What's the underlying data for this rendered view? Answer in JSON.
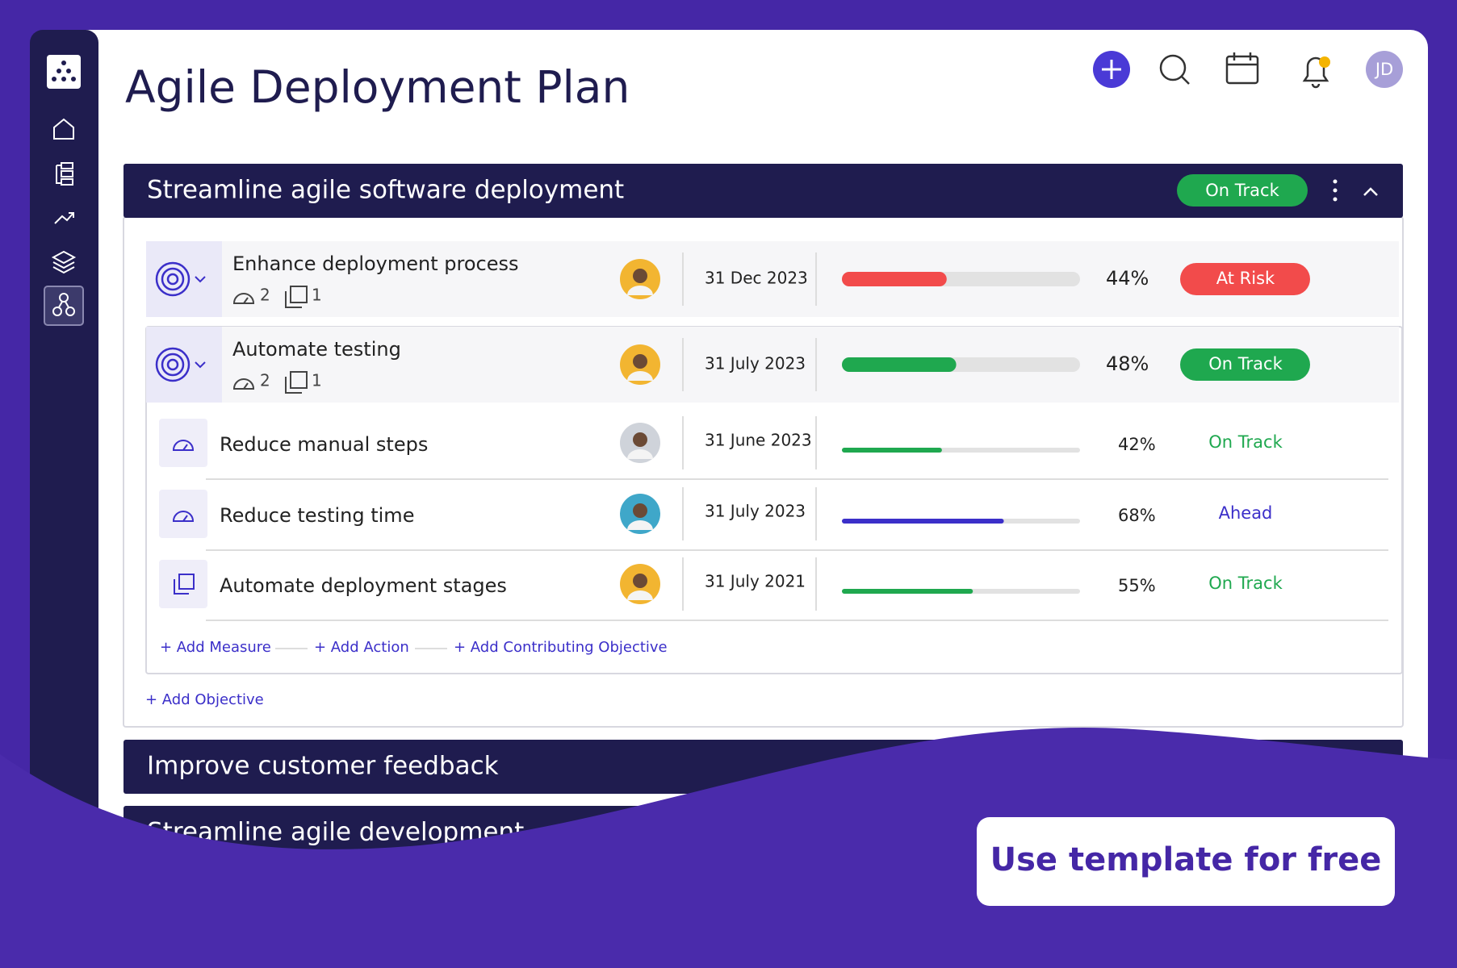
{
  "app": {
    "title": "Agile Deployment Plan",
    "user_initials": "JD"
  },
  "objectives": [
    {
      "title": "Streamline agile software deployment",
      "status": "On Track",
      "items": [
        {
          "name": "Enhance deployment process",
          "measures": 2,
          "actions": 1,
          "date": "31 Dec 2023",
          "progress": {
            "value": 44,
            "label": "44%"
          },
          "status": "At Risk",
          "color": "#f24b4b",
          "avatar": "#f2b531"
        },
        {
          "name": "Automate testing",
          "measures": 2,
          "actions": 1,
          "date": "31 July 2023",
          "progress": {
            "value": 48,
            "label": "48%"
          },
          "status": "On Track",
          "color": "#1fa84f",
          "avatar": "#f2b531",
          "children": [
            {
              "name": "Reduce manual steps",
              "date": "31 June 2023",
              "progress": {
                "value": 42,
                "label": "42%"
              },
              "status": "On Track",
              "color": "#1fa84f",
              "avatar": "#cfd3da"
            },
            {
              "name": "Reduce testing time",
              "date": "31 July 2023",
              "progress": {
                "value": 68,
                "label": "68%"
              },
              "status": "Ahead",
              "color": "#3b2fc9",
              "avatar": "#3fa7c9"
            },
            {
              "name": "Automate deployment stages",
              "date": "31 July 2021",
              "progress": {
                "value": 55,
                "label": "55%"
              },
              "status": "On Track",
              "color": "#1fa84f",
              "avatar": "#f2b531"
            }
          ]
        }
      ],
      "add_links": [
        "+ Add Measure",
        "+ Add Action",
        "+ Add Contributing Objective"
      ],
      "add_objective": "+ Add Objective"
    },
    {
      "title": "Improve customer feedback"
    },
    {
      "title": "Streamline agile development"
    }
  ],
  "cta": "Use template for free"
}
